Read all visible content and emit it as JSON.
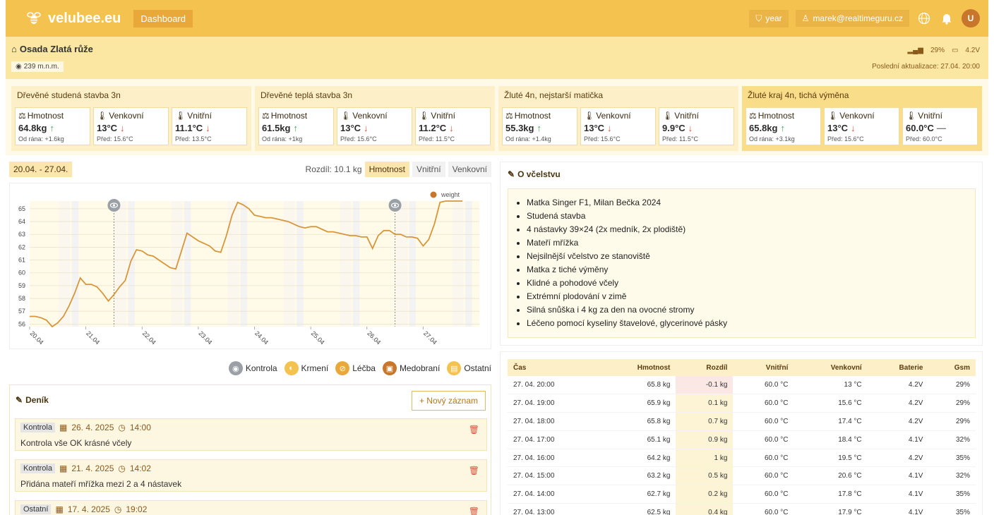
{
  "app": {
    "brand": "velubee.eu",
    "nav_dashboard": "Dashboard",
    "period": "year",
    "user_email": "marek@realtimeguru.cz",
    "avatar_letter": "U"
  },
  "location": {
    "name": "Osada Zlatá růže",
    "altitude": "239 m.n.m.",
    "signal": "29%",
    "battery": "4.2V",
    "last_update": "Poslední aktualizace: 27.04. 20:00"
  },
  "hives": [
    {
      "name": "Dřevěné studená stavba 3n",
      "weight": {
        "label": "Hmotnost",
        "value": "64.8kg",
        "trend": "up",
        "sub": "Od rána: +1.6kg"
      },
      "outside": {
        "label": "Venkovní",
        "value": "13°C",
        "trend": "down",
        "sub": "Před: 15.6°C"
      },
      "inside": {
        "label": "Vnitřní",
        "value": "11.1°C",
        "trend": "down",
        "sub": "Před: 13.5°C"
      }
    },
    {
      "name": "Dřevěné teplá stavba 3n",
      "weight": {
        "label": "Hmotnost",
        "value": "61.5kg",
        "trend": "up",
        "sub": "Od rána: +1kg"
      },
      "outside": {
        "label": "Venkovní",
        "value": "13°C",
        "trend": "down",
        "sub": "Před: 15.6°C"
      },
      "inside": {
        "label": "Vnitřní",
        "value": "11.2°C",
        "trend": "down",
        "sub": "Před: 11.5°C"
      }
    },
    {
      "name": "Žluté 4n, nejstarší matička",
      "weight": {
        "label": "Hmotnost",
        "value": "55.3kg",
        "trend": "up",
        "sub": "Od rána: +1.4kg"
      },
      "outside": {
        "label": "Venkovní",
        "value": "13°C",
        "trend": "down",
        "sub": "Před: 15.6°C"
      },
      "inside": {
        "label": "Vnitřní",
        "value": "9.9°C",
        "trend": "down",
        "sub": "Před: 11.5°C"
      }
    },
    {
      "name": "Žluté kraj 4n, tichá výměna",
      "weight": {
        "label": "Hmotnost",
        "value": "65.8kg",
        "trend": "up",
        "sub": "Od rána: +3.1kg"
      },
      "outside": {
        "label": "Venkovní",
        "value": "13°C",
        "trend": "down",
        "sub": "Před: 15.6°C"
      },
      "inside": {
        "label": "Vnitřní",
        "value": "60.0°C",
        "trend": "flat",
        "sub": "Před: 60.0°C"
      }
    }
  ],
  "chart_controls": {
    "range": "20.04. - 27.04.",
    "difference": "Rozdíl: 10.1 kg",
    "tabs": [
      "Hmotnost",
      "Vnitřní",
      "Venkovní"
    ]
  },
  "chart_data": {
    "type": "line",
    "legend": "weight",
    "ylim": [
      55.8,
      65.6
    ],
    "yticks": [
      56,
      57,
      58,
      59,
      60,
      61,
      62,
      63,
      64,
      65
    ],
    "x_ticks": [
      "20.04",
      "21.04",
      "22.04",
      "23.04",
      "24.04",
      "25.04",
      "26.04",
      "27.04"
    ],
    "series": [
      {
        "name": "weight",
        "x": [
          0.0,
          0.1,
          0.2,
          0.3,
          0.4,
          0.5,
          0.6,
          0.7,
          0.8,
          0.9,
          1.0,
          1.1,
          1.2,
          1.3,
          1.4,
          1.5,
          1.6,
          1.7,
          1.8,
          1.9,
          2.0,
          2.1,
          2.2,
          2.3,
          2.4,
          2.5,
          2.6,
          2.7,
          2.8,
          2.9,
          3.0,
          3.1,
          3.2,
          3.3,
          3.4,
          3.5,
          3.6,
          3.7,
          3.8,
          3.9,
          4.0,
          4.1,
          4.2,
          4.3,
          4.4,
          4.5,
          4.6,
          4.7,
          4.8,
          4.9,
          5.0,
          5.1,
          5.2,
          5.3,
          5.4,
          5.5,
          5.6,
          5.7,
          5.8,
          5.9,
          6.0,
          6.1,
          6.2,
          6.3,
          6.4,
          6.5,
          6.6,
          6.7,
          6.8,
          6.9,
          7.0,
          7.1,
          7.2,
          7.3,
          7.4,
          7.5,
          7.6,
          7.7
        ],
        "values": [
          56.6,
          56.6,
          56.5,
          56.3,
          55.8,
          56.1,
          56.6,
          57.4,
          58.4,
          59.6,
          59.1,
          59.1,
          58.9,
          58.4,
          57.8,
          58.3,
          58.9,
          59.4,
          60.9,
          61.8,
          61.7,
          61.4,
          61.3,
          61.0,
          60.7,
          60.4,
          60.3,
          61.7,
          63.1,
          62.8,
          62.5,
          62.3,
          62.1,
          61.7,
          61.6,
          62.9,
          64.5,
          65.5,
          65.3,
          65.0,
          64.5,
          64.4,
          64.3,
          64.3,
          64.2,
          64.1,
          64.0,
          63.8,
          63.6,
          63.5,
          63.6,
          63.6,
          63.4,
          63.2,
          63.2,
          63.1,
          63.0,
          62.9,
          62.9,
          62.8,
          62.8,
          61.9,
          62.9,
          63.3,
          63.3,
          63.0,
          63.0,
          62.8,
          62.8,
          62.7,
          62.1,
          62.6,
          63.8,
          65.5,
          65.6,
          65.6,
          65.6,
          65.6
        ]
      }
    ],
    "markers": [
      {
        "x": 1.5,
        "label": "Kontrola"
      },
      {
        "x": 6.5,
        "label": "Kontrola"
      }
    ]
  },
  "legend_types": [
    {
      "label": "Kontrola",
      "color": "#9aa0a6",
      "icon": "eye-icon"
    },
    {
      "label": "Krmení",
      "color": "#f4c24e",
      "icon": "drop-icon"
    },
    {
      "label": "Léčba",
      "color": "#e8a93a",
      "icon": "bandage-icon"
    },
    {
      "label": "Medobraní",
      "color": "#c8762b",
      "icon": "box-icon"
    },
    {
      "label": "Ostatní",
      "color": "#f4c24e",
      "icon": "note-icon"
    }
  ],
  "diary": {
    "title": "Deník",
    "new_button": "+ Nový záznam",
    "entries": [
      {
        "type": "Kontrola",
        "date": "26. 4. 2025",
        "time": "14:00",
        "text": "Kontrola vše OK krásné včely"
      },
      {
        "type": "Kontrola",
        "date": "21. 4. 2025",
        "time": "14:02",
        "text": "Přidána mateří mřížka mezi 2 a 4 nástavek"
      },
      {
        "type": "Ostatní",
        "date": "17. 4. 2025",
        "time": "19:02",
        "text": ""
      }
    ]
  },
  "about": {
    "title": "O včelstvu",
    "items": [
      "Matka Singer F1, Milan Bečka 2024",
      "Studená stavba",
      "4 nástavky 39×24 (2x medník, 2x plodiště)",
      "Mateří mřížka",
      "Nejsilnější včelstvo ze stanoviště",
      "Matka z tiché výměny",
      "Klidné a pohodové včely",
      "Extrémní plodování v zimě",
      "Silná snůška i 4 kg za den na ovocné stromy",
      "Léčeno pomocí kyseliny štavelové, glycerinové pásky"
    ]
  },
  "table": {
    "headers": [
      "Čas",
      "Hmotnost",
      "Rozdíl",
      "Vnitřní",
      "Venkovní",
      "Baterie",
      "Gsm"
    ],
    "rows": [
      [
        "27. 04. 20:00",
        "65.8 kg",
        "-0.1 kg",
        "60.0 °C",
        "13 °C",
        "4.2V",
        "29%"
      ],
      [
        "27. 04. 19:00",
        "65.9 kg",
        "0.1 kg",
        "60.0 °C",
        "15.6 °C",
        "4.2V",
        "29%"
      ],
      [
        "27. 04. 18:00",
        "65.8 kg",
        "0.7 kg",
        "60.0 °C",
        "17.4 °C",
        "4.2V",
        "29%"
      ],
      [
        "27. 04. 17:00",
        "65.1 kg",
        "0.9 kg",
        "60.0 °C",
        "18.4 °C",
        "4.1V",
        "32%"
      ],
      [
        "27. 04. 16:00",
        "64.2 kg",
        "1 kg",
        "60.0 °C",
        "19.5 °C",
        "4.2V",
        "35%"
      ],
      [
        "27. 04. 15:00",
        "63.2 kg",
        "0.5 kg",
        "60.0 °C",
        "20.6 °C",
        "4.1V",
        "32%"
      ],
      [
        "27. 04. 14:00",
        "62.7 kg",
        "0.2 kg",
        "60.0 °C",
        "17.8 °C",
        "4.1V",
        "35%"
      ],
      [
        "27. 04. 13:00",
        "62.5 kg",
        "0.4 kg",
        "60.0 °C",
        "17.9 °C",
        "4.1V",
        "35%"
      ]
    ]
  }
}
